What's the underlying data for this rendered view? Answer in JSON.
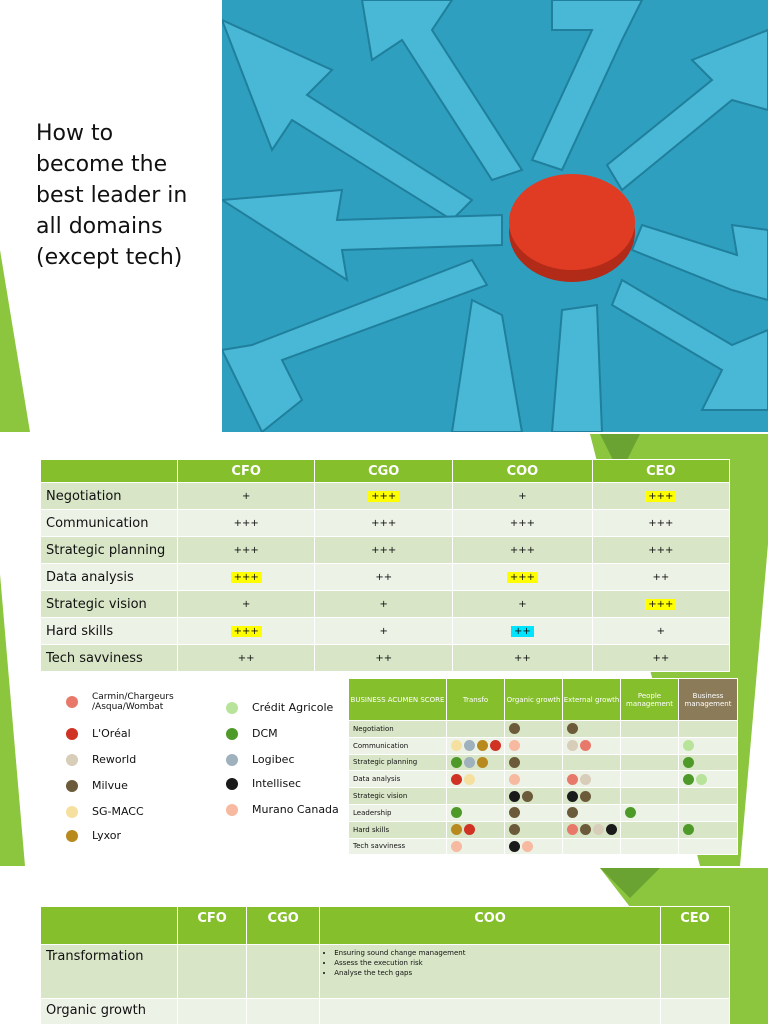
{
  "slide1": {
    "title_lines": [
      "How to",
      "become the",
      "best leader in",
      "all domains",
      "(except tech)"
    ]
  },
  "roles_table": {
    "headers": [
      "",
      "CFO",
      "CGO",
      "COO",
      "CEO"
    ],
    "rows": [
      {
        "label": "Negotiation",
        "cells": [
          {
            "v": "+"
          },
          {
            "v": "+++",
            "hl": "yellow"
          },
          {
            "v": "+"
          },
          {
            "v": "+++",
            "hl": "yellow"
          }
        ]
      },
      {
        "label": "Communication",
        "cells": [
          {
            "v": "+++"
          },
          {
            "v": "+++"
          },
          {
            "v": "+++"
          },
          {
            "v": "+++"
          }
        ]
      },
      {
        "label": "Strategic planning",
        "cells": [
          {
            "v": "+++"
          },
          {
            "v": "+++"
          },
          {
            "v": "+++"
          },
          {
            "v": "+++"
          }
        ]
      },
      {
        "label": "Data analysis",
        "cells": [
          {
            "v": "+++",
            "hl": "yellow"
          },
          {
            "v": "++"
          },
          {
            "v": "+++",
            "hl": "yellow"
          },
          {
            "v": "++"
          }
        ]
      },
      {
        "label": "Strategic vision",
        "cells": [
          {
            "v": "+"
          },
          {
            "v": "+"
          },
          {
            "v": "+"
          },
          {
            "v": "+++",
            "hl": "yellow"
          }
        ]
      },
      {
        "label": "Hard skills",
        "cells": [
          {
            "v": "+++",
            "hl": "yellow"
          },
          {
            "v": "+"
          },
          {
            "v": "++",
            "hl": "cyan"
          },
          {
            "v": "+"
          }
        ]
      },
      {
        "label": "Tech savviness",
        "cells": [
          {
            "v": "++"
          },
          {
            "v": "++"
          },
          {
            "v": "++"
          },
          {
            "v": "++"
          }
        ]
      }
    ]
  },
  "legend": [
    {
      "name": "Carmin/Chargeurs\n/Asqua/Wombat",
      "color": "#e8796a"
    },
    {
      "name": "L'Oréal",
      "color": "#d03224"
    },
    {
      "name": "Reworld",
      "color": "#d8cdb8"
    },
    {
      "name": "Milvue",
      "color": "#6b5b3a"
    },
    {
      "name": "SG-MACC",
      "color": "#f6e0a0"
    },
    {
      "name": "Lyxor",
      "color": "#b88a1e"
    },
    {
      "name": "Crédit Agricole",
      "color": "#b8e39a"
    },
    {
      "name": "DCM",
      "color": "#4e9a28"
    },
    {
      "name": "Logibec",
      "color": "#9fb1bc"
    },
    {
      "name": "Intellisec",
      "color": "#1a1a1a"
    },
    {
      "name": "Murano Canada",
      "color": "#f7b9a0"
    }
  ],
  "acumen_table": {
    "headers": [
      "BUSINESS ACUMEN SCORE",
      "Transfo",
      "Organic growth",
      "External growth",
      "People management",
      "Business management"
    ],
    "rows": [
      {
        "label": "Negotiation",
        "cells": [
          [],
          [
            3
          ],
          [
            3
          ],
          [],
          []
        ]
      },
      {
        "label": "Communication",
        "cells": [
          [
            4,
            8,
            5,
            1
          ],
          [
            10
          ],
          [
            2,
            0
          ],
          [],
          [
            6
          ]
        ]
      },
      {
        "label": "Strategic planning",
        "cells": [
          [
            7,
            8,
            5
          ],
          [
            3
          ],
          [],
          [],
          [
            7
          ]
        ]
      },
      {
        "label": "Data analysis",
        "cells": [
          [
            1,
            4
          ],
          [
            10
          ],
          [
            0,
            2
          ],
          [],
          [
            7,
            6
          ]
        ]
      },
      {
        "label": "Strategic vision",
        "cells": [
          [],
          [
            9,
            3
          ],
          [
            9,
            3
          ],
          [],
          []
        ]
      },
      {
        "label": "Leadership",
        "cells": [
          [
            7
          ],
          [
            3
          ],
          [
            3
          ],
          [
            7
          ],
          []
        ]
      },
      {
        "label": "Hard skills",
        "cells": [
          [
            5,
            1
          ],
          [
            3
          ],
          [
            0,
            3,
            2,
            9
          ],
          [],
          [
            7
          ]
        ]
      },
      {
        "label": "Tech savviness",
        "cells": [
          [
            10
          ],
          [
            9,
            10
          ],
          [],
          [],
          []
        ]
      }
    ]
  },
  "domains_table": {
    "headers": [
      "",
      "CFO",
      "CGO",
      "COO",
      "CEO"
    ],
    "rows": [
      {
        "label": "Transformation",
        "coo_bullets": [
          "Ensuring sound change management",
          "Assess the execution risk",
          "Analyse the tech gaps"
        ]
      },
      {
        "label": "Organic growth",
        "coo_bullets": []
      }
    ]
  }
}
